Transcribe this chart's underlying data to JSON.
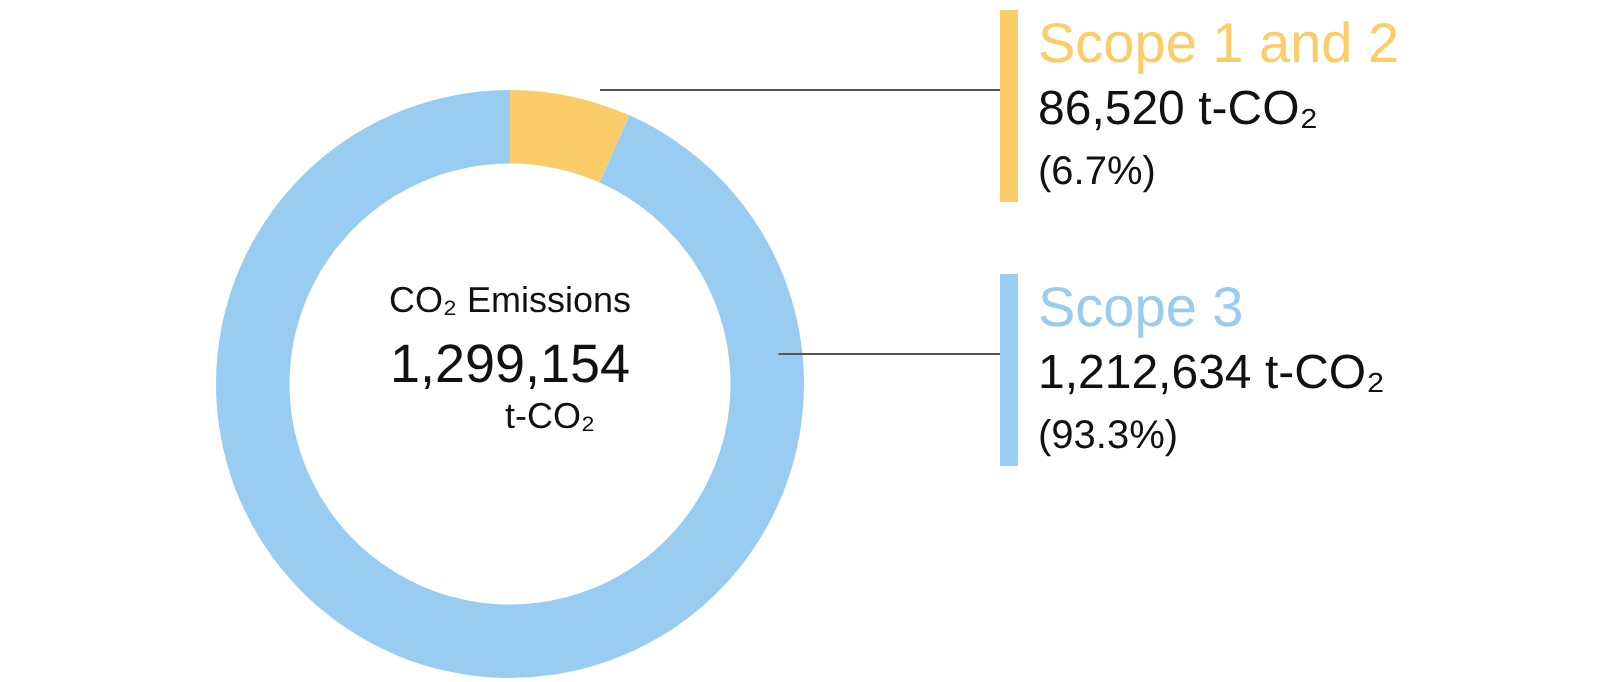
{
  "chart_data": {
    "type": "donut",
    "title": "CO₂ Emissions",
    "annotations": [
      "1,299,154",
      "t-CO₂"
    ],
    "categories": [
      "Scope 1 and 2",
      "Scope 3"
    ],
    "values": [
      86520,
      1212634
    ],
    "colors": [
      "#fbcd68",
      "#98cdf1"
    ],
    "value_labels": [
      "86,520 t-CO₂\n(6.7%)",
      "1,212,634 t-CO₂\n(93.3%)"
    ],
    "legend": false
  }
}
